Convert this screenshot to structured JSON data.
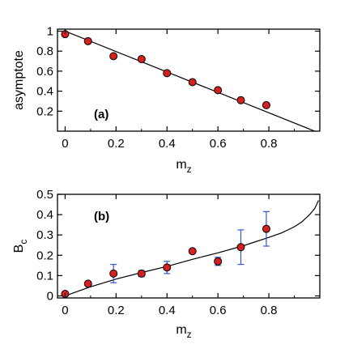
{
  "chart_data": [
    {
      "type": "scatter",
      "panel_label": "(a)",
      "xlabel": "m",
      "xlabel_sub": "z",
      "ylabel": "asymptote",
      "xlim": [
        -0.03,
        1.0
      ],
      "ylim": [
        0.0,
        1.02
      ],
      "xticks": [
        0,
        0.2,
        0.4,
        0.6,
        0.8
      ],
      "xtick_labels": [
        "0",
        "0.2",
        "0.4",
        "0.6",
        "0.8"
      ],
      "yticks": [
        0.2,
        0.4,
        0.6,
        0.8,
        1
      ],
      "ytick_labels": [
        "0.2",
        "0.4",
        "0.6",
        "0.8",
        "1"
      ],
      "points": {
        "x": [
          0.0,
          0.09,
          0.19,
          0.3,
          0.4,
          0.5,
          0.6,
          0.69,
          0.79
        ],
        "y": [
          0.97,
          0.9,
          0.75,
          0.72,
          0.58,
          0.49,
          0.41,
          0.31,
          0.26
        ]
      },
      "fit_line": {
        "x": [
          0.0,
          0.98
        ],
        "y": [
          1.0,
          0.0
        ]
      },
      "marker_color": "#d62020",
      "line_color": "#000000"
    },
    {
      "type": "scatter",
      "panel_label": "(b)",
      "xlabel": "m",
      "xlabel_sub": "z",
      "ylabel": "B",
      "ylabel_sub": "c",
      "xlim": [
        -0.03,
        1.0
      ],
      "ylim": [
        -0.01,
        0.5
      ],
      "xticks": [
        0,
        0.2,
        0.4,
        0.6,
        0.8
      ],
      "xtick_labels": [
        "0",
        "0.2",
        "0.4",
        "0.6",
        "0.8"
      ],
      "yticks": [
        0,
        0.1,
        0.2,
        0.3,
        0.4,
        0.5
      ],
      "ytick_labels": [
        "0",
        "0.1",
        "0.2",
        "0.3",
        "0.4",
        "0.5"
      ],
      "points": {
        "x": [
          0.0,
          0.09,
          0.19,
          0.3,
          0.4,
          0.5,
          0.6,
          0.69,
          0.79
        ],
        "y": [
          0.01,
          0.06,
          0.11,
          0.11,
          0.14,
          0.22,
          0.17,
          0.24,
          0.33
        ],
        "err": [
          0.0,
          0.0,
          0.045,
          0.015,
          0.03,
          0.0,
          0.02,
          0.085,
          0.085
        ]
      },
      "fit_curve": {
        "x": [
          0.0,
          0.1,
          0.2,
          0.3,
          0.4,
          0.5,
          0.6,
          0.7,
          0.8,
          0.85,
          0.9,
          0.93,
          0.96,
          0.98,
          0.995
        ],
        "y": [
          0.0,
          0.045,
          0.083,
          0.115,
          0.145,
          0.18,
          0.212,
          0.247,
          0.288,
          0.31,
          0.34,
          0.365,
          0.4,
          0.43,
          0.47
        ]
      },
      "marker_color": "#d62020",
      "errorbar_color": "#3355cc",
      "line_color": "#000000"
    }
  ]
}
